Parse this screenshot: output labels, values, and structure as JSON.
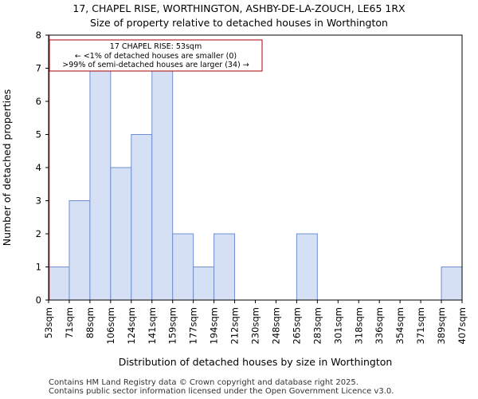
{
  "title_line1": "17, CHAPEL RISE, WORTHINGTON, ASHBY-DE-LA-ZOUCH, LE65 1RX",
  "title_line2": "Size of property relative to detached houses in Worthington",
  "footer_line1": "Contains HM Land Registry data © Crown copyright and database right 2025.",
  "footer_line2": "Contains public sector information licensed under the Open Government Licence v3.0.",
  "colors": {
    "bar_fill": "#d6e0f5",
    "bar_stroke": "#6f8fcf",
    "marker": "#cc0000",
    "annotation_border": "#aa0000"
  },
  "chart_data": {
    "type": "bar",
    "xlabel": "Distribution of detached houses by size in Worthington",
    "ylabel": "Number of detached properties",
    "ylim": [
      0,
      8
    ],
    "yticks": [
      0,
      1,
      2,
      3,
      4,
      5,
      6,
      7,
      8
    ],
    "x_tick_labels": [
      "53sqm",
      "71sqm",
      "88sqm",
      "106sqm",
      "124sqm",
      "141sqm",
      "159sqm",
      "177sqm",
      "194sqm",
      "212sqm",
      "230sqm",
      "248sqm",
      "265sqm",
      "283sqm",
      "301sqm",
      "318sqm",
      "336sqm",
      "354sqm",
      "371sqm",
      "389sqm",
      "407sqm"
    ],
    "values": [
      1,
      3,
      7,
      4,
      5,
      7,
      2,
      1,
      2,
      0,
      0,
      0,
      2,
      0,
      0,
      0,
      0,
      0,
      0,
      1
    ],
    "marker_value": "53sqm",
    "annotation": {
      "line1": "17 CHAPEL RISE: 53sqm",
      "line2": "← <1% of detached houses are smaller (0)",
      "line3": ">99% of semi-detached houses are larger (34) →"
    }
  }
}
